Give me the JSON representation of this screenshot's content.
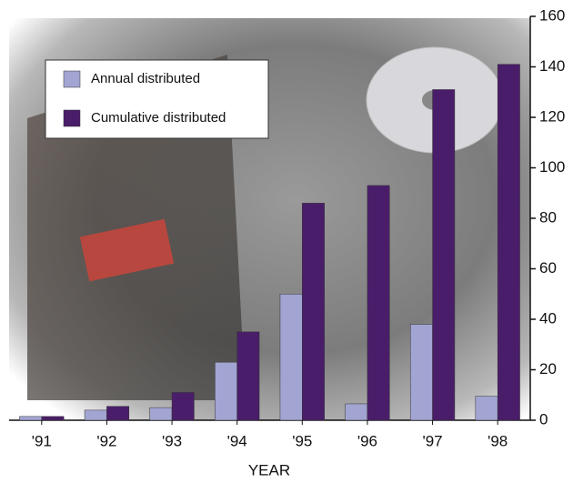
{
  "chart_data": {
    "type": "bar",
    "x_label": "YEAR",
    "categories": [
      "'91",
      "'92",
      "'93",
      "'94",
      "'95",
      "'96",
      "'97",
      "'98"
    ],
    "series": [
      {
        "name": "Annual distributed",
        "color": "#a2a4d2",
        "values": [
          1.5,
          4,
          5,
          23,
          50,
          6.5,
          38,
          9.5
        ]
      },
      {
        "name": "Cumulative distributed",
        "color": "#4a1d6a",
        "values": [
          1.5,
          5.5,
          11,
          35,
          86,
          93,
          131,
          141
        ]
      }
    ],
    "ylim": [
      0,
      160
    ],
    "yticks": [
      0,
      20,
      40,
      60,
      80,
      100,
      120,
      140,
      160
    ],
    "y_axis_side": "right",
    "legend": "upper left"
  }
}
